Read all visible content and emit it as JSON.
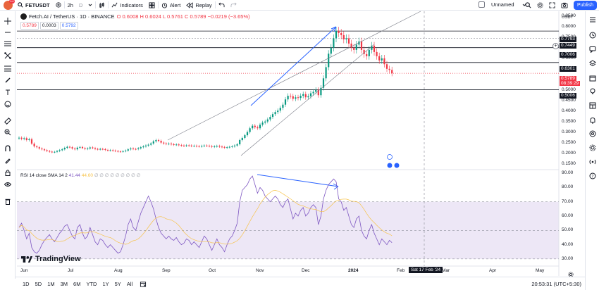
{
  "header": {
    "symbol": "FETUSDT",
    "interval": "2h",
    "chart_type_letter": "D",
    "indicators_label": "Indicators",
    "alert_label": "Alert",
    "replay_label": "Replay",
    "layout_name": "Unnamed",
    "publish_label": "Publish",
    "notification_count": "11"
  },
  "legend": {
    "title": "Fetch.AI / TetherUS · 1D · BINANCE",
    "ohlc": "O 0.6008  H 0.6024  L 0.5761  C 0.5789  −0.0219 (−3.65%)",
    "values": [
      "0.5789",
      "0.0003",
      "0.5792"
    ]
  },
  "rsi_legend": {
    "name": "RSI 14 close SMA 14 2",
    "value1": "41.44",
    "value2": "44.60",
    "extra": "∅ ∅ ∅ ∅ ∅ ∅ ∅ ∅ ∅"
  },
  "price_axis": {
    "currency": "USDT",
    "ticks": [
      "0.8500",
      "0.8000",
      "0.7500",
      "0.7000",
      "0.6500",
      "0.6000",
      "0.5500",
      "0.5000",
      "0.4500",
      "0.4000",
      "0.3500",
      "0.3000",
      "0.2500",
      "0.2000",
      "0.1500"
    ],
    "tags": [
      {
        "label": "0.7793",
        "style": "dark"
      },
      {
        "label": "0.7449",
        "style": "dark"
      },
      {
        "label": "0.7006",
        "style": "dark"
      },
      {
        "label": "0.6301",
        "style": "dark"
      },
      {
        "label": "0.5789",
        "style": "red"
      },
      {
        "label": "08:39:29",
        "style": "red"
      },
      {
        "label": "0.5006",
        "style": "dark"
      }
    ]
  },
  "rsi_axis": {
    "ticks": [
      "90.00",
      "80.00",
      "70.00",
      "60.00",
      "50.00",
      "40.00",
      "30.00"
    ]
  },
  "time_axis": {
    "months": [
      "Jun",
      "Jul",
      "Aug",
      "Sep",
      "Oct",
      "Nov",
      "Dec",
      "2024",
      "Feb",
      "Mar",
      "Apr",
      "May"
    ],
    "crosshair_date": "Sat 17 Feb '24"
  },
  "bottom": {
    "ranges": [
      "1D",
      "5D",
      "1M",
      "3M",
      "6M",
      "YTD",
      "1Y",
      "5Y",
      "All"
    ],
    "clock": "20:53:31 (UTC+5:30)"
  },
  "watermark": "TradingView",
  "colors": {
    "up": "#089981",
    "down": "#f23645",
    "rsi": "#7e57c2",
    "rsi_ma": "#f7c34a",
    "accent": "#2962ff",
    "rsi_band": "#ede7f6"
  },
  "chart_data": {
    "type": "candlestick",
    "ohlc_closes": [
      0.273,
      0.268,
      0.271,
      0.262,
      0.266,
      0.245,
      0.232,
      0.228,
      0.222,
      0.218,
      0.214,
      0.21,
      0.207,
      0.205,
      0.206,
      0.21,
      0.214,
      0.218,
      0.225,
      0.23,
      0.228,
      0.222,
      0.218,
      0.226,
      0.229,
      0.224,
      0.22,
      0.222,
      0.227,
      0.224,
      0.22,
      0.218,
      0.22,
      0.219,
      0.215,
      0.213,
      0.214,
      0.212,
      0.21,
      0.208,
      0.207,
      0.209,
      0.212,
      0.218,
      0.222,
      0.22,
      0.219,
      0.223,
      0.228,
      0.232,
      0.236,
      0.24,
      0.246,
      0.256,
      0.262,
      0.258,
      0.25,
      0.246,
      0.244,
      0.245,
      0.242,
      0.24,
      0.241,
      0.238,
      0.236,
      0.235,
      0.237,
      0.236,
      0.234,
      0.235,
      0.233,
      0.232,
      0.234,
      0.236,
      0.235,
      0.233,
      0.23,
      0.232,
      0.234,
      0.231,
      0.229,
      0.226,
      0.228,
      0.23,
      0.232,
      0.236,
      0.242,
      0.262,
      0.272,
      0.285,
      0.3,
      0.318,
      0.33,
      0.323,
      0.318,
      0.335,
      0.345,
      0.35,
      0.36,
      0.372,
      0.385,
      0.395,
      0.402,
      0.415,
      0.43,
      0.455,
      0.472,
      0.47,
      0.458,
      0.465,
      0.462,
      0.472,
      0.48,
      0.465,
      0.47,
      0.484,
      0.491,
      0.5,
      0.475,
      0.51,
      0.555,
      0.608,
      0.672,
      0.7,
      0.745,
      0.78,
      0.77,
      0.76,
      0.74,
      0.745,
      0.72,
      0.7,
      0.69,
      0.715,
      0.73,
      0.69,
      0.67,
      0.66,
      0.69,
      0.71,
      0.68,
      0.66,
      0.64,
      0.65,
      0.622,
      0.6,
      0.595,
      0.579
    ],
    "rsi": [
      52,
      55,
      50,
      44,
      48,
      38,
      35,
      34,
      36,
      40,
      43,
      45,
      47,
      44,
      42,
      45,
      48,
      50,
      53,
      54,
      50,
      46,
      44,
      52,
      54,
      48,
      44,
      46,
      52,
      47,
      42,
      40,
      44,
      43,
      40,
      38,
      40,
      38,
      36,
      34,
      35,
      40,
      46,
      54,
      58,
      52,
      50,
      56,
      62,
      66,
      70,
      74,
      70,
      65,
      58,
      52,
      48,
      46,
      44,
      46,
      44,
      43,
      45,
      42,
      40,
      41,
      44,
      43,
      40,
      42,
      40,
      38,
      42,
      46,
      44,
      40,
      36,
      40,
      44,
      40,
      38,
      35,
      40,
      44,
      46,
      50,
      55,
      70,
      78,
      80,
      82,
      86,
      88,
      82,
      76,
      80,
      78,
      74,
      72,
      70,
      72,
      74,
      72,
      68,
      66,
      70,
      72,
      65,
      58,
      62,
      60,
      64,
      66,
      60,
      62,
      66,
      68,
      66,
      54,
      60,
      72,
      78,
      82,
      84,
      86,
      84,
      72,
      70,
      64,
      66,
      60,
      54,
      52,
      58,
      60,
      50,
      46,
      44,
      50,
      54,
      48,
      44,
      40,
      44,
      42,
      40,
      43,
      41.4
    ],
    "price_range": [
      0.125,
      0.87
    ],
    "rsi_range": [
      25,
      92
    ],
    "horizontal_levels": [
      0.7793,
      0.7006,
      0.6301,
      0.5006
    ],
    "current_price": 0.5789
  }
}
